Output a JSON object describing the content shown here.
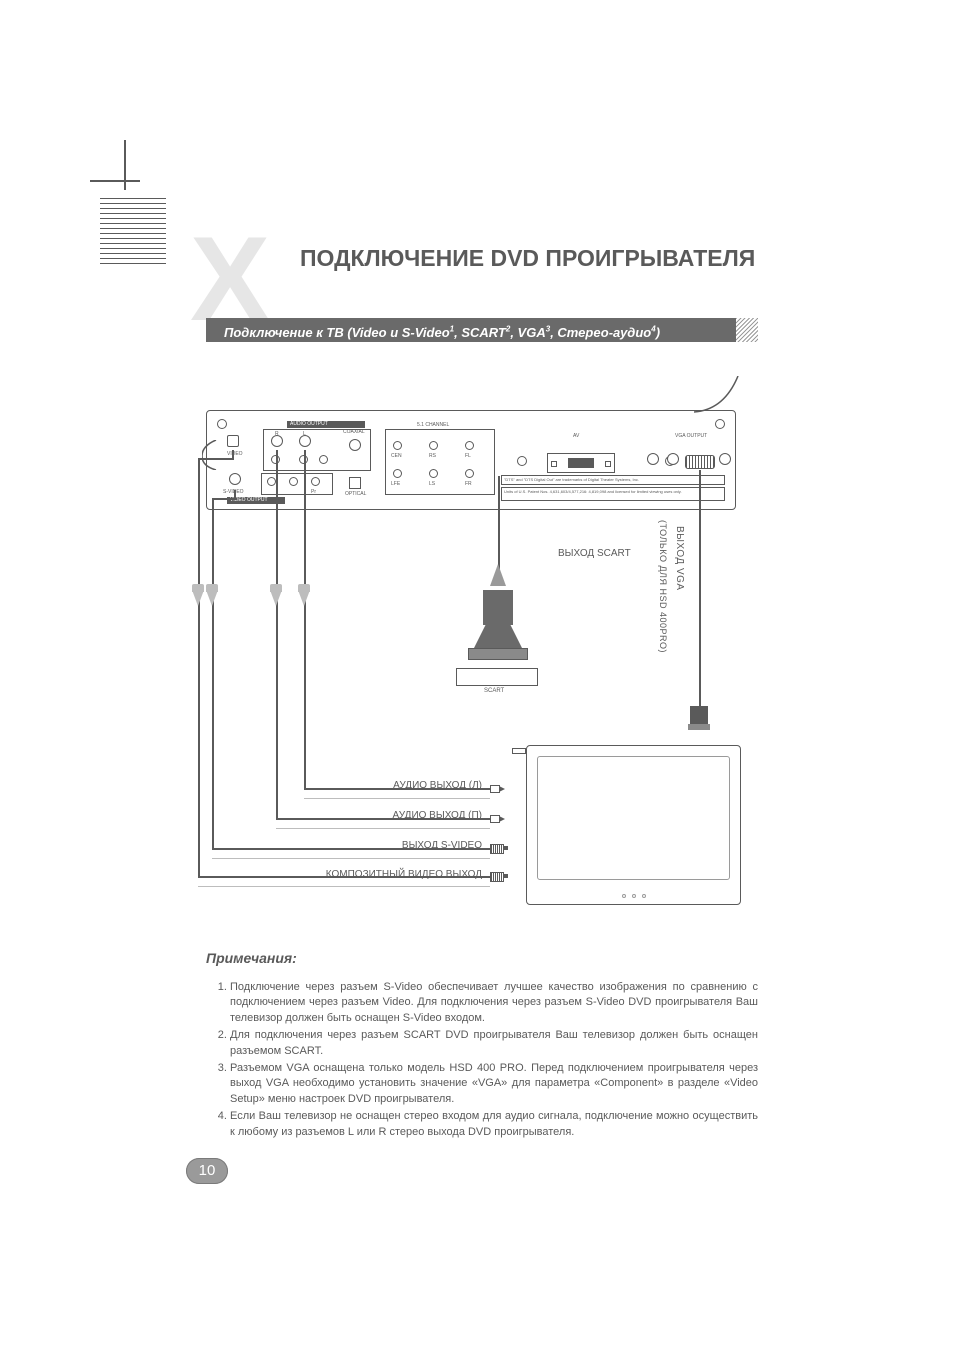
{
  "title": "ПОДКЛЮЧЕНИЕ DVD ПРОИГРЫВАТЕЛЯ",
  "subtitle_html": "Подключение к ТВ (Video и S-Video<sup>1</sup>, SCART<sup>2</sup>, VGA<sup>3</sup>, Стерео-аудио<sup>4</sup>)",
  "panel": {
    "audio_output": "AUDIO OUTPUT",
    "coaxial": "COAXIAL",
    "channel": "5.1 CHANNEL",
    "video": "VIDEO",
    "svideo": "S-VIDEO",
    "video_output": "VIDEO OUTPUT",
    "optical": "OPTICAL",
    "av": "AV",
    "vga_output": "VGA OUTPUT",
    "r": "R",
    "l": "L",
    "cen": "CEN",
    "rs": "RS",
    "fl": "FL",
    "lfe": "LFE",
    "ls": "LS",
    "fr": "FR",
    "pr": "Pr",
    "pb": "Pb",
    "y": "Y",
    "dts_note": "\"DTS\" and \"DTS Digital Out\" are trademarks of Digital Theater Systems, Inc.",
    "patent_note": "Units of U.S. Patent Nos. 4,631,603/4,577,216: 4,819,098 and licensed for limited viewing uses only."
  },
  "diagram_labels": {
    "scart_out": "ВЫХОД SCART",
    "scart_jack": "SCART",
    "vga_out": "ВЫХОД VGA",
    "vga_note": "(ТОЛЬКО ДЛЯ HSD 400PRO)",
    "audio_l": "АУДИО ВЫХОД (Л)",
    "audio_r": "АУДИО ВЫХОД (П)",
    "svideo_out": "ВЫХОД S-VIDEO",
    "composite_out": "КОМПОЗИТНЫЙ ВИДЕО ВЫХОД"
  },
  "notes_title": "Примечания:",
  "notes": [
    "Подключение через разъем S-Video обеспечивает лучшее качество изображения по сравнению с подключением через разъем Video. Для подключения через разъем S-Video DVD проигрывателя Ваш телевизор должен быть оснащен S-Video входом.",
    "Для подключения через разъем SCART DVD проигрывателя Ваш телевизор должен быть оснащен разъемом SCART.",
    "Разъемом VGA оснащена только модель HSD 400 PRO. Перед подключением проигрывателя через выход VGA необходимо установить значение «VGA» для параметра «Component» в разделе «Video Setup» меню настроек DVD проигрывателя.",
    "Если Ваш телевизор не оснащен стерео входом для аудио сигнала, подключение можно осуществить к любому из разъемов L или R стерео выхода DVD проигрывателя."
  ],
  "page_number": "10",
  "colors": {
    "text": "#5a5a5a",
    "bar": "#6a6a6a",
    "light_x": "#e6e6e6",
    "arrow": "#bdbdbd",
    "pagenum_bg": "#9a9a9a"
  }
}
